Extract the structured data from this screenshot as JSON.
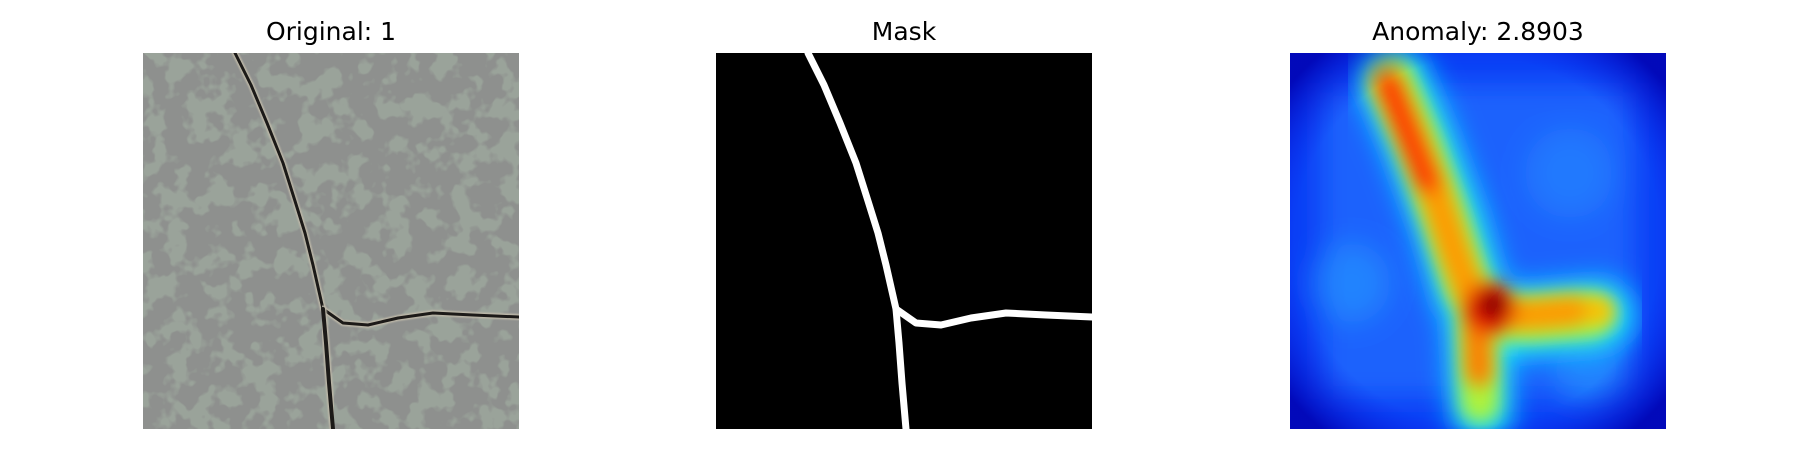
{
  "panels": [
    {
      "title": "Original: 1",
      "image": "photo of grey speckled textured surface with a dark crack"
    },
    {
      "title": "Mask",
      "image": "binary mask: black background with white crack line"
    },
    {
      "title": "Anomaly: 2.8903",
      "image": "jet colormap anomaly heatmap highlighting the crack"
    }
  ],
  "colors": {
    "background": "#ffffff",
    "mask_bg": "#000000",
    "mask_fg": "#ffffff",
    "heat_low": "#0a1ee6",
    "heat_high": "#8b0000"
  }
}
